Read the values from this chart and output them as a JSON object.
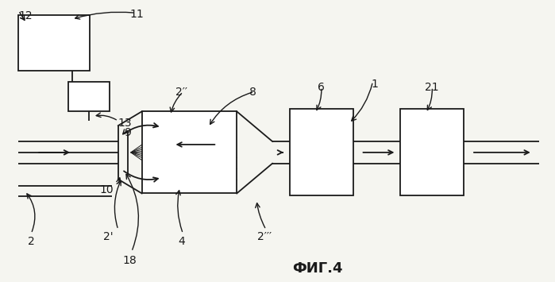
{
  "title": "ФИГ.4",
  "bg_color": "#f5f5f0",
  "line_color": "#1a1a1a",
  "fig_width": 6.99,
  "fig_height": 3.55
}
